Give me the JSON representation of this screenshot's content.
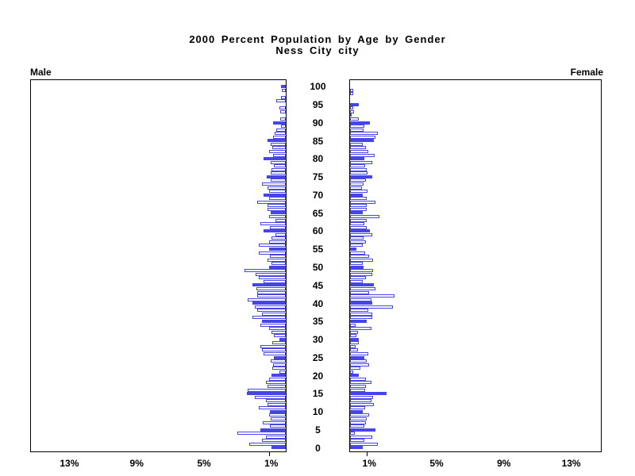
{
  "chart_data": {
    "type": "bar",
    "variant": "population-pyramid",
    "title": "2000 Percent Population by Age by Gender",
    "subtitle": "Ness City city",
    "left_label": "Male",
    "right_label": "Female",
    "unit": "%",
    "age_min": 0,
    "age_max": 100,
    "age_tick_labels": [
      0,
      5,
      10,
      15,
      20,
      25,
      30,
      35,
      40,
      45,
      50,
      55,
      60,
      65,
      70,
      75,
      80,
      85,
      90,
      95,
      100
    ],
    "pct_axis_tick_labels_left": [
      "13%",
      "9%",
      "5%",
      "1%"
    ],
    "pct_axis_tick_labels_right": [
      "1%",
      "5%",
      "9%",
      "13%"
    ],
    "pct_label_values": [
      1,
      5,
      9,
      13
    ],
    "pct_tick_marks": [
      1
    ],
    "pct_axis_max": 15,
    "legend": "bars at ages divisible by 5 are solid filled; other ages are outlined",
    "colors": {
      "bar_fill_solid": "#4646e8",
      "bar_outline": "#4646e8",
      "bar_fill_open": "#ffffff",
      "axis": "#000000",
      "text": "#000000",
      "background": "#ffffff"
    },
    "series": [
      {
        "name": "Male",
        "side": "left",
        "values_by_age": [
          0.85,
          2.15,
          1.4,
          1.2,
          2.9,
          1.5,
          0.95,
          1.35,
          0.9,
          1.0,
          0.95,
          1.6,
          1.1,
          1.2,
          1.85,
          2.3,
          2.25,
          1.1,
          1.2,
          1.0,
          0.85,
          0.4,
          0.8,
          0.75,
          0.9,
          0.7,
          1.3,
          1.4,
          1.5,
          0.8,
          0.4,
          0.7,
          0.85,
          1.0,
          1.5,
          1.4,
          2.0,
          1.4,
          1.7,
          1.85,
          2.0,
          2.25,
          1.7,
          1.7,
          1.75,
          2.0,
          1.3,
          1.6,
          1.8,
          2.45,
          1.0,
          0.85,
          1.1,
          0.95,
          1.6,
          1.0,
          1.6,
          1.0,
          0.85,
          0.6,
          1.3,
          0.95,
          1.5,
          0.6,
          1.0,
          0.9,
          1.1,
          1.1,
          1.7,
          1.0,
          1.3,
          1.0,
          1.1,
          1.4,
          0.9,
          1.15,
          0.9,
          0.85,
          0.7,
          0.9,
          1.3,
          0.75,
          1.0,
          0.8,
          0.9,
          1.1,
          0.75,
          0.65,
          0.55,
          0.3,
          0.75,
          0.35,
          0.0,
          0.35,
          0.4,
          0.0,
          0.55,
          0.3,
          0.0,
          0.25,
          0.3
        ]
      },
      {
        "name": "Female",
        "side": "right",
        "values_by_age": [
          0.75,
          1.65,
          0.85,
          1.3,
          0.3,
          1.5,
          0.85,
          0.95,
          1.0,
          1.15,
          0.75,
          0.9,
          1.4,
          1.25,
          1.35,
          2.15,
          0.9,
          0.95,
          1.25,
          0.95,
          0.5,
          0.2,
          0.6,
          1.15,
          1.0,
          0.85,
          1.1,
          0.45,
          0.35,
          0.5,
          0.5,
          0.4,
          0.45,
          1.25,
          0.35,
          1.0,
          1.3,
          1.3,
          1.1,
          2.55,
          1.3,
          1.25,
          2.65,
          1.15,
          1.5,
          1.4,
          0.75,
          0.95,
          1.3,
          1.35,
          0.8,
          0.75,
          1.35,
          1.15,
          0.9,
          0.4,
          0.75,
          0.95,
          0.8,
          1.3,
          1.2,
          1.0,
          0.85,
          1.0,
          1.75,
          0.75,
          1.0,
          1.0,
          1.5,
          1.0,
          0.75,
          1.05,
          0.7,
          0.8,
          0.95,
          1.3,
          1.05,
          1.0,
          0.9,
          1.3,
          0.85,
          1.45,
          1.1,
          0.95,
          0.75,
          1.4,
          1.5,
          1.65,
          0.8,
          0.85,
          1.2,
          0.5,
          0.1,
          0.25,
          0.2,
          0.5,
          0.0,
          0.0,
          0.2,
          0.2,
          0.0
        ]
      }
    ]
  }
}
